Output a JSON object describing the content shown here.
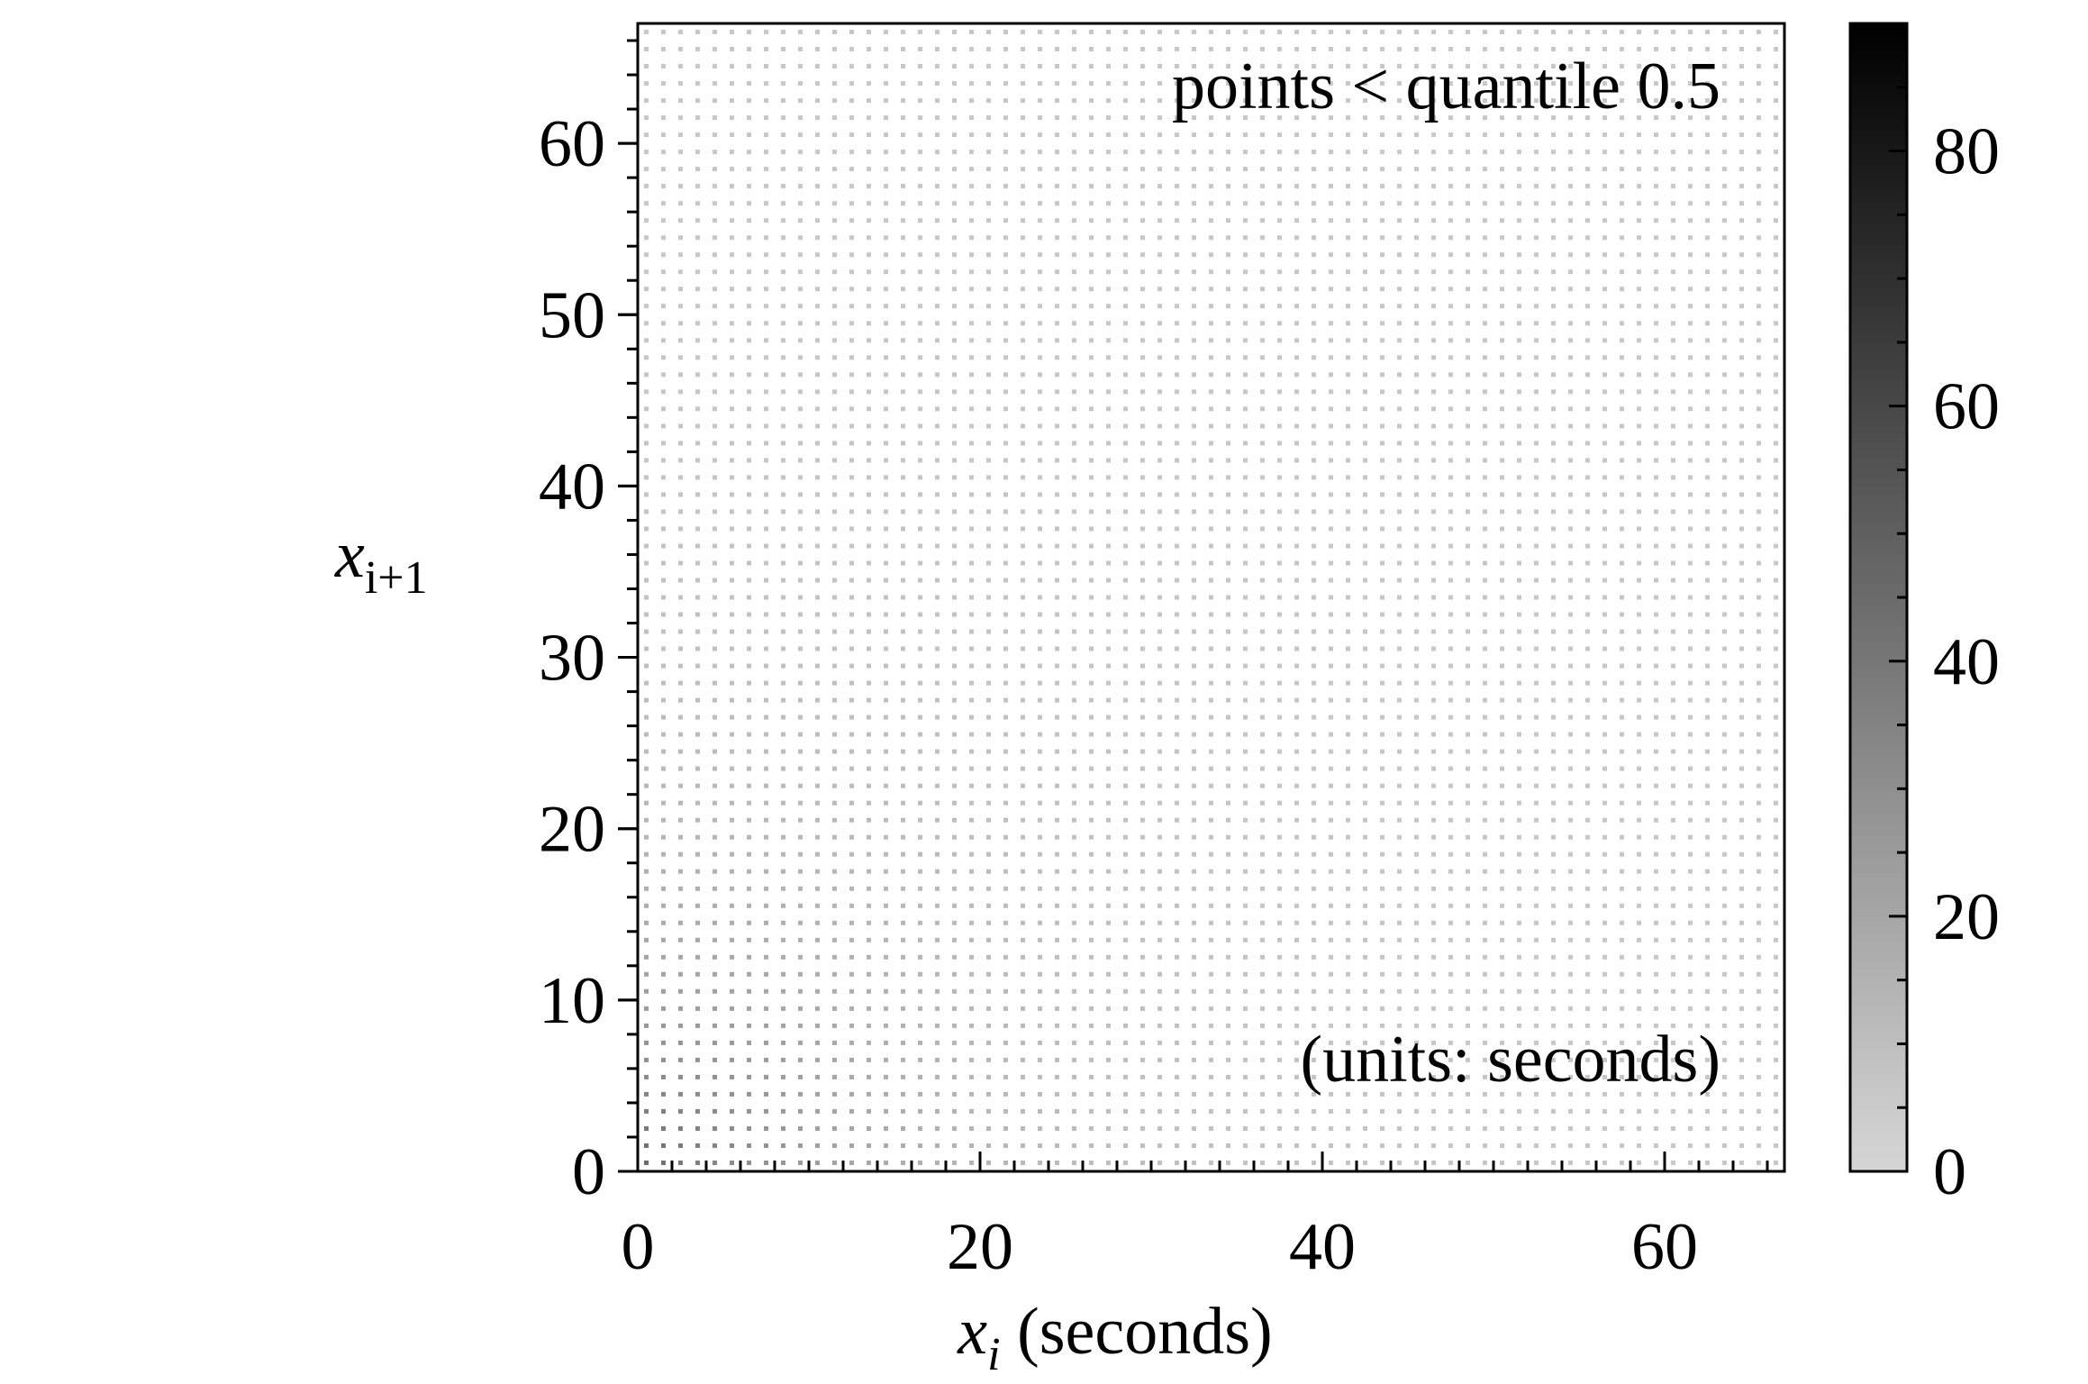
{
  "chart_data": {
    "type": "heatmap",
    "title": "",
    "annotation_top": "points < quantile 0.5",
    "annotation_bottom": "(units: seconds)",
    "xlabel": {
      "var": "x",
      "sub": "i",
      "suffix": " (seconds)"
    },
    "ylabel": {
      "var": "x",
      "sub": "i+1"
    },
    "xlim": [
      0,
      67
    ],
    "ylim": [
      0,
      67
    ],
    "x_ticks": [
      0,
      20,
      40,
      60
    ],
    "y_ticks": [
      0,
      10,
      20,
      30,
      40,
      50,
      60
    ],
    "x_tick_labels": [
      "0",
      "20",
      "40",
      "60"
    ],
    "y_tick_labels": [
      "0",
      "10",
      "20",
      "30",
      "40",
      "50",
      "60"
    ],
    "grid_step": 1,
    "grid_max": 66,
    "density_model": {
      "description": "count of consecutive (x_i, x_{i+1}) pairs per 1-second cell, highest near origin and decaying outward",
      "peak_count": 45,
      "floor_count": 6,
      "decay_scale": 12
    },
    "colorbar": {
      "range": [
        0,
        90
      ],
      "ticks": [
        0,
        20,
        40,
        60,
        80
      ],
      "tick_labels": [
        "0",
        "20",
        "40",
        "60",
        "80"
      ],
      "color_low": "#d6d6d6",
      "color_high": "#000000"
    },
    "grid": false,
    "legend": "none"
  }
}
